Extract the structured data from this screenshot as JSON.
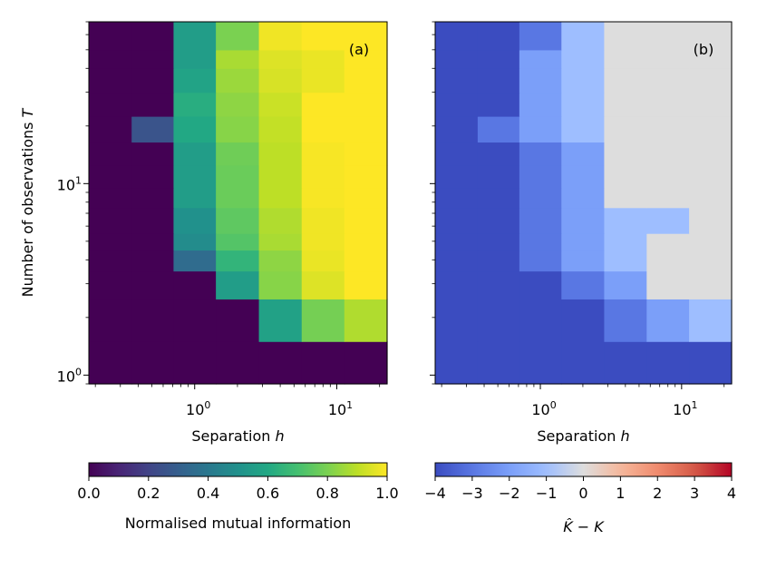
{
  "chart_data": [
    {
      "type": "heatmap",
      "panel_label": "(a)",
      "xlabel_pre": "Separation ",
      "xlabel_var": "h",
      "ylabel_pre": "Number of observations ",
      "ylabel_var": "T",
      "xscale": "log",
      "yscale": "log",
      "xlim": [
        0.18,
        22.6
      ],
      "ylim": [
        0.9,
        70
      ],
      "x_edges": [
        0.18,
        0.36,
        0.71,
        1.41,
        2.83,
        5.66,
        11.3,
        22.6
      ],
      "y_edges": [
        0.9,
        1.5,
        2.5,
        3.5,
        4.5,
        5.5,
        7.5,
        9.5,
        12.5,
        16.5,
        22.5,
        30,
        40,
        50,
        70
      ],
      "colormap": "viridis",
      "values": [
        [
          0.0,
          0.0,
          0.0,
          0.0,
          0.0,
          0.0,
          0.0
        ],
        [
          0.0,
          0.0,
          0.0,
          0.0,
          0.57,
          0.79,
          0.88
        ],
        [
          0.0,
          0.0,
          0.0,
          0.55,
          0.82,
          0.95,
          1.0
        ],
        [
          0.0,
          0.0,
          0.35,
          0.65,
          0.83,
          0.97,
          1.0
        ],
        [
          0.0,
          0.0,
          0.48,
          0.73,
          0.87,
          0.98,
          1.0
        ],
        [
          0.0,
          0.0,
          0.5,
          0.75,
          0.88,
          0.98,
          1.0
        ],
        [
          0.0,
          0.0,
          0.55,
          0.77,
          0.9,
          0.99,
          1.0
        ],
        [
          0.0,
          0.0,
          0.55,
          0.77,
          0.9,
          0.99,
          1.0
        ],
        [
          0.0,
          0.0,
          0.55,
          0.78,
          0.9,
          0.99,
          1.0
        ],
        [
          0.0,
          0.26,
          0.6,
          0.82,
          0.91,
          1.0,
          1.0
        ],
        [
          0.0,
          0.0,
          0.62,
          0.83,
          0.92,
          1.0,
          1.0
        ],
        [
          0.0,
          0.0,
          0.58,
          0.85,
          0.94,
          0.97,
          1.0
        ],
        [
          0.0,
          0.0,
          0.55,
          0.87,
          0.95,
          0.97,
          1.0
        ],
        [
          0.0,
          0.0,
          0.55,
          0.8,
          0.98,
          1.0,
          1.0
        ]
      ],
      "x_ticks": [
        {
          "base": "10",
          "exp": "0",
          "value": 1
        },
        {
          "base": "10",
          "exp": "1",
          "value": 10
        }
      ],
      "y_ticks": [
        {
          "base": "10",
          "exp": "0",
          "value": 1
        },
        {
          "base": "10",
          "exp": "1",
          "value": 10
        }
      ],
      "colorbar": {
        "label": "Normalised mutual information",
        "range": [
          0.0,
          1.0
        ],
        "ticks": [
          "0.0",
          "0.2",
          "0.4",
          "0.6",
          "0.8",
          "1.0"
        ]
      }
    },
    {
      "type": "heatmap",
      "panel_label": "(b)",
      "xlabel_pre": "Separation ",
      "xlabel_var": "h",
      "xscale": "log",
      "yscale": "log",
      "xlim": [
        0.18,
        22.6
      ],
      "ylim": [
        0.9,
        70
      ],
      "x_edges": [
        0.18,
        0.36,
        0.71,
        1.41,
        2.83,
        5.66,
        11.3,
        22.6
      ],
      "y_edges": [
        0.9,
        1.5,
        2.5,
        3.5,
        4.5,
        5.5,
        7.5,
        9.5,
        12.5,
        16.5,
        22.5,
        30,
        40,
        50,
        70
      ],
      "colormap": "coolwarm",
      "values": [
        [
          -4,
          -4,
          -4,
          -4,
          -4,
          -4,
          -4
        ],
        [
          -4,
          -4,
          -4,
          -4,
          -3,
          -2,
          -1
        ],
        [
          -4,
          -4,
          -4,
          -3,
          -2,
          0,
          0
        ],
        [
          -4,
          -4,
          -3,
          -2,
          -1,
          0,
          0
        ],
        [
          -4,
          -4,
          -3,
          -2,
          -1,
          0,
          0
        ],
        [
          -4,
          -4,
          -3,
          -2,
          -1,
          -1,
          0
        ],
        [
          -4,
          -4,
          -3,
          -2,
          0,
          0,
          0
        ],
        [
          -4,
          -4,
          -3,
          -2,
          0,
          0,
          0
        ],
        [
          -4,
          -4,
          -3,
          -2,
          0,
          0,
          0
        ],
        [
          -4,
          -3,
          -2,
          -1,
          0,
          0,
          0
        ],
        [
          -4,
          -4,
          -2,
          -1,
          0,
          0,
          0
        ],
        [
          -4,
          -4,
          -2,
          -1,
          0,
          0,
          0
        ],
        [
          -4,
          -4,
          -2,
          -1,
          0,
          0,
          0
        ],
        [
          -4,
          -4,
          -3,
          -1,
          0,
          0,
          0
        ]
      ],
      "x_ticks": [
        {
          "base": "10",
          "exp": "0",
          "value": 1
        },
        {
          "base": "10",
          "exp": "1",
          "value": 10
        }
      ],
      "colorbar": {
        "label": "K̂ − K",
        "range": [
          -4,
          4
        ],
        "ticks": [
          "−4",
          "−3",
          "−2",
          "−1",
          "0",
          "1",
          "2",
          "3",
          "4"
        ]
      }
    }
  ]
}
